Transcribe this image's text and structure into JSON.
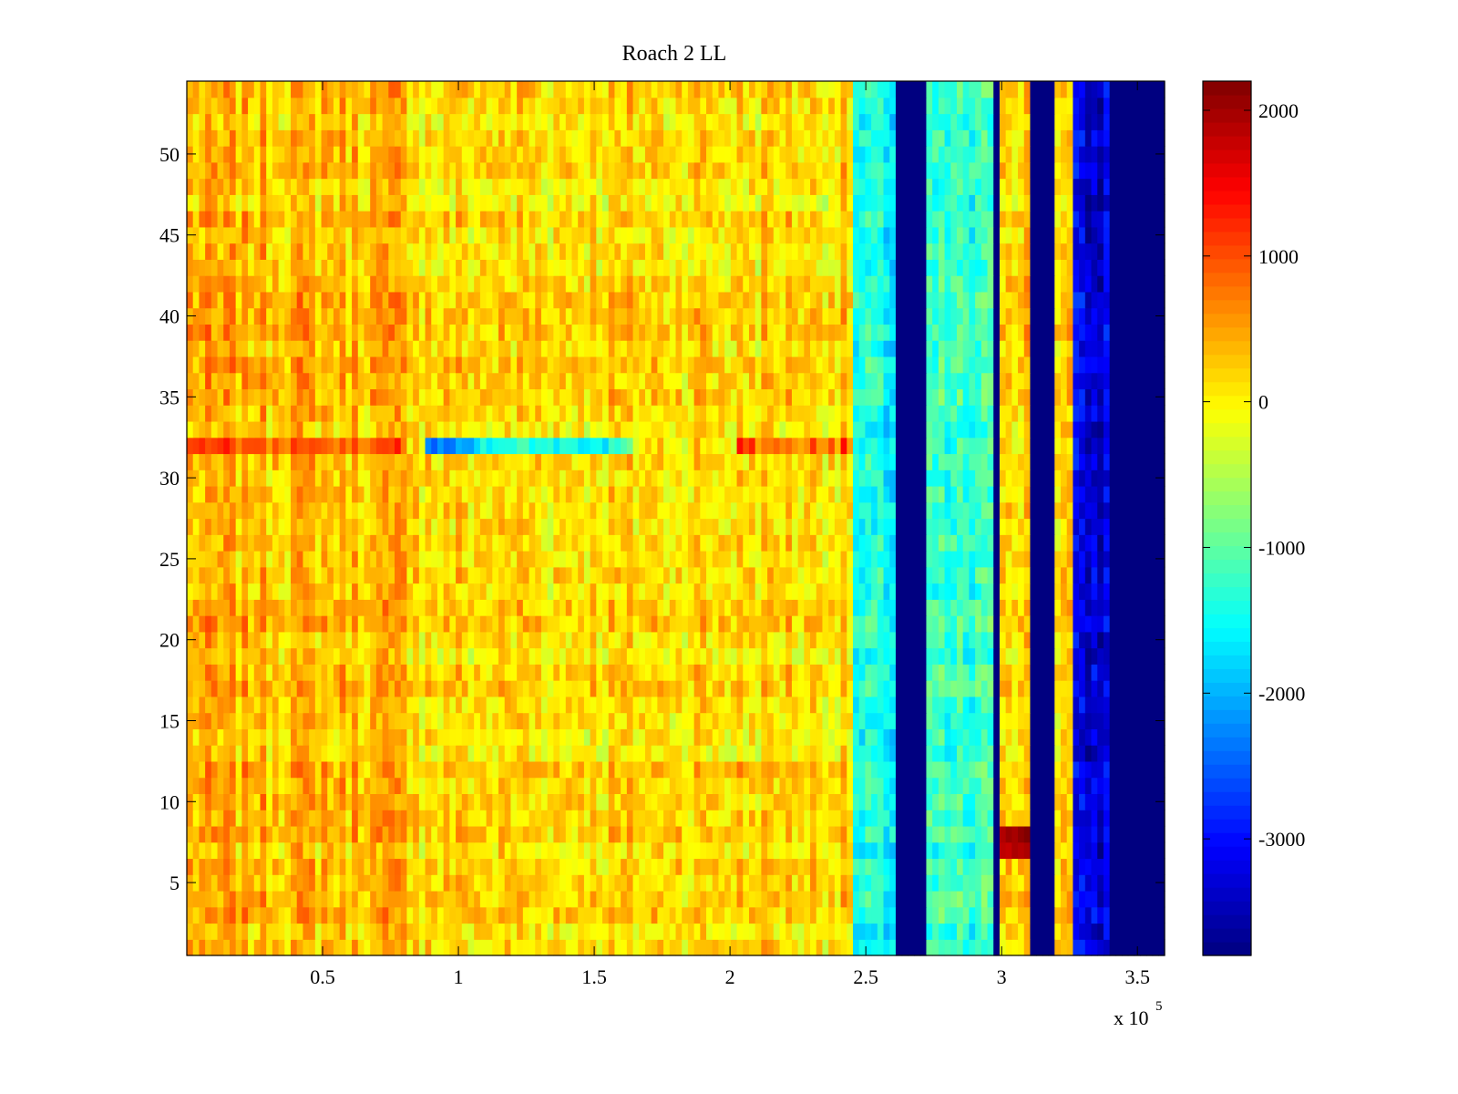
{
  "chart_data": {
    "type": "heatmap",
    "title": "Roach 2 LL",
    "xlabel": "",
    "ylabel": "",
    "x_multiplier_label": {
      "base": "x 10",
      "exponent": "5"
    },
    "xlim": [
      0,
      3.6
    ],
    "ylim": [
      0.5,
      54.5
    ],
    "x_unit_scale": 100000,
    "xticks": [
      0.5,
      1,
      1.5,
      2,
      2.5,
      3,
      3.5
    ],
    "xtick_labels": [
      "0.5",
      "1",
      "1.5",
      "2",
      "2.5",
      "3",
      "3.5"
    ],
    "yticks": [
      5,
      10,
      15,
      20,
      25,
      30,
      35,
      40,
      45,
      50
    ],
    "ytick_labels": [
      "5",
      "10",
      "15",
      "20",
      "25",
      "30",
      "35",
      "40",
      "45",
      "50"
    ],
    "rows": 54,
    "colormap": "jet",
    "clim": [
      -3800,
      2200
    ],
    "colorbar": {
      "ticks": [
        2000,
        1000,
        0,
        -1000,
        -2000,
        -3000
      ],
      "tick_labels": [
        "2000",
        "1000",
        "0",
        "-1000",
        "-2000",
        "-3000"
      ],
      "placement": "right"
    },
    "column_regions": [
      {
        "x_start": 0.0,
        "x_end": 0.85,
        "mean_value": 350,
        "description_value": "warm orange/yellow"
      },
      {
        "x_start": 0.85,
        "x_end": 2.46,
        "mean_value": 150
      },
      {
        "x_start": 2.46,
        "x_end": 2.6,
        "mean_value": -1500
      },
      {
        "x_start": 2.6,
        "x_end": 2.72,
        "mean_value": -3800
      },
      {
        "x_start": 2.72,
        "x_end": 2.96,
        "mean_value": -1300
      },
      {
        "x_start": 2.96,
        "x_end": 3.0,
        "mean_value": -3800
      },
      {
        "x_start": 3.0,
        "x_end": 3.11,
        "mean_value": 300
      },
      {
        "x_start": 3.11,
        "x_end": 3.2,
        "mean_value": -3800
      },
      {
        "x_start": 3.2,
        "x_end": 3.26,
        "mean_value": 200
      },
      {
        "x_start": 3.26,
        "x_end": 3.39,
        "mean_value": -3300
      },
      {
        "x_start": 3.39,
        "x_end": 3.6,
        "mean_value": -3800
      }
    ],
    "row_anomalies": [
      {
        "row": 32,
        "x_start": 0.0,
        "x_end": 0.8,
        "value": 900
      },
      {
        "row": 32,
        "x_start": 0.87,
        "x_end": 1.05,
        "value": -2300
      },
      {
        "row": 32,
        "x_start": 1.05,
        "x_end": 1.65,
        "value": -1400
      },
      {
        "row": 32,
        "x_start": 2.03,
        "x_end": 2.46,
        "value": 900
      },
      {
        "row": 7,
        "x_start": 3.0,
        "x_end": 3.11,
        "value": 2100
      },
      {
        "row": 8,
        "x_start": 3.0,
        "x_end": 3.11,
        "value": 2100
      }
    ]
  }
}
